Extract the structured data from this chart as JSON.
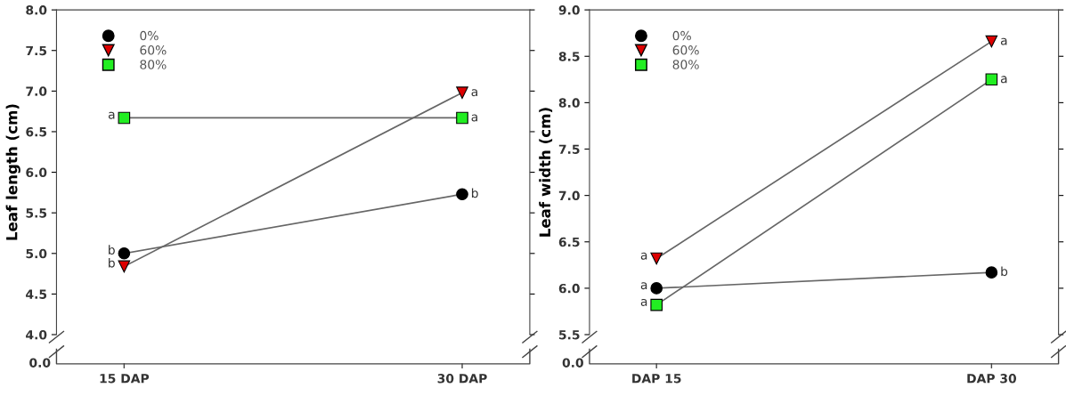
{
  "chart_data": [
    {
      "type": "line",
      "categories": [
        "15 DAP",
        "30 DAP"
      ],
      "ylabel": "Leaf length (cm)",
      "ylim": [
        4.0,
        8.0
      ],
      "yticks": [
        {
          "value": 4,
          "label": "4.0"
        },
        {
          "value": 4.5,
          "label": "4.5"
        },
        {
          "value": 5,
          "label": "5.0"
        },
        {
          "value": 5.5,
          "label": "5.5"
        },
        {
          "value": 6,
          "label": "6.0"
        },
        {
          "value": 6.5,
          "label": "6.5"
        },
        {
          "value": 7,
          "label": "7.0"
        },
        {
          "value": 7.5,
          "label": "7.5"
        },
        {
          "value": 8,
          "label": "8.0"
        }
      ],
      "legend": "top left",
      "series": [
        {
          "name": "0%",
          "color": "#000000",
          "marker": "circle",
          "values": [
            5.0,
            5.73
          ],
          "value_labels": [
            "b",
            "b"
          ]
        },
        {
          "name": "60%",
          "color": "#dd0000",
          "marker": "triangle",
          "values": [
            4.84,
            6.98
          ],
          "value_labels": [
            "b",
            "a"
          ]
        },
        {
          "name": "80%",
          "color": "#22ee22",
          "marker": "square",
          "values": [
            6.67,
            6.67
          ],
          "value_labels": [
            "a",
            "a"
          ]
        }
      ],
      "annotations": [
        "0.0"
      ]
    },
    {
      "type": "line",
      "categories": [
        "DAP 15",
        "DAP 30"
      ],
      "ylabel": "Leaf width (cm)",
      "ylim": [
        5.5,
        9.0
      ],
      "yticks": [
        {
          "value": 5.5,
          "label": "5.5"
        },
        {
          "value": 6,
          "label": "6.0"
        },
        {
          "value": 6.5,
          "label": "6.5"
        },
        {
          "value": 7,
          "label": "7.0"
        },
        {
          "value": 7.5,
          "label": "7.5"
        },
        {
          "value": 8,
          "label": "8.0"
        },
        {
          "value": 8.5,
          "label": "8.5"
        },
        {
          "value": 9,
          "label": "9.0"
        }
      ],
      "legend": "top left",
      "series": [
        {
          "name": "0%",
          "color": "#000000",
          "marker": "circle",
          "values": [
            6.0,
            6.17
          ],
          "value_labels": [
            "a",
            "b"
          ]
        },
        {
          "name": "60%",
          "color": "#dd0000",
          "marker": "triangle",
          "values": [
            6.32,
            8.66
          ],
          "value_labels": [
            "a",
            "a"
          ]
        },
        {
          "name": "80%",
          "color": "#22ee22",
          "marker": "square",
          "values": [
            5.82,
            8.25
          ],
          "value_labels": [
            "a",
            "a"
          ]
        }
      ],
      "annotations": [
        "0.0"
      ]
    }
  ]
}
